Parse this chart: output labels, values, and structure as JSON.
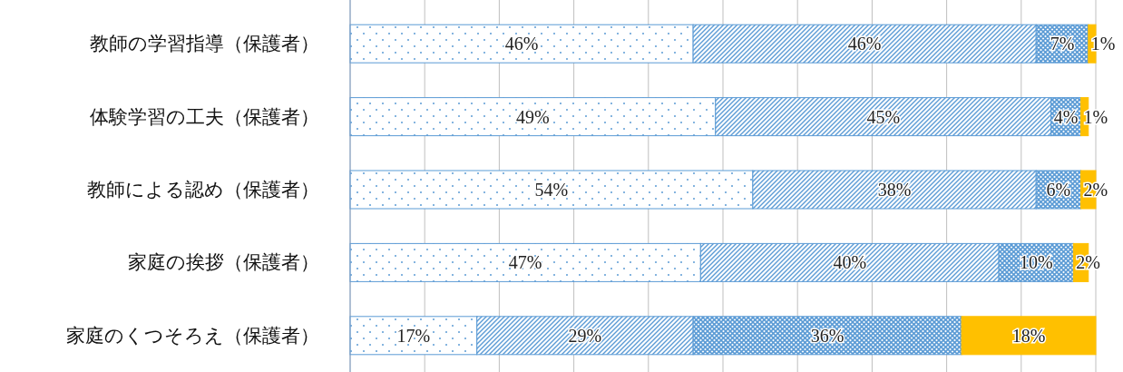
{
  "chart_data": {
    "type": "bar",
    "orientation": "horizontal",
    "stacked": true,
    "categories": [
      "教師の学習指導（保護者）",
      "体験学習の工夫（保護者）",
      "教師による認め（保護者）",
      "家庭の挨拶（保護者）",
      "家庭のくつそろえ（保護者）"
    ],
    "xlim": [
      0,
      100
    ],
    "xticks": [
      {
        "value": 0,
        "label": null
      },
      {
        "value": 10,
        "label": null
      },
      {
        "value": 20,
        "label": null
      },
      {
        "value": 30,
        "label": null
      },
      {
        "value": 40,
        "label": null
      },
      {
        "value": 50,
        "label": null
      },
      {
        "value": 60,
        "label": null
      },
      {
        "value": 70,
        "label": null
      },
      {
        "value": 80,
        "label": null
      },
      {
        "value": 90,
        "label": null
      },
      {
        "value": 100,
        "label": null
      }
    ],
    "grid": "x",
    "tick_labels": "y",
    "series": [
      {
        "color": "#5b9bd5",
        "values": [
          46,
          49,
          54,
          47,
          17
        ],
        "value_labels": [
          "46%",
          "49%",
          "54%",
          "47%",
          "17%"
        ]
      },
      {
        "color": "#5b9bd5",
        "values": [
          46,
          45,
          38,
          40,
          29
        ],
        "value_labels": [
          "46%",
          "45%",
          "38%",
          "40%",
          "29%"
        ]
      },
      {
        "color": "#5b9bd5",
        "values": [
          7,
          4,
          6,
          10,
          36
        ],
        "value_labels": [
          "7%",
          "4%",
          "6%",
          "10%",
          "36%"
        ]
      },
      {
        "color": "#ffc000",
        "values": [
          1,
          1,
          2,
          2,
          18
        ],
        "value_labels": [
          "1%",
          "1%",
          "2%",
          "2%",
          "18%"
        ]
      }
    ]
  }
}
